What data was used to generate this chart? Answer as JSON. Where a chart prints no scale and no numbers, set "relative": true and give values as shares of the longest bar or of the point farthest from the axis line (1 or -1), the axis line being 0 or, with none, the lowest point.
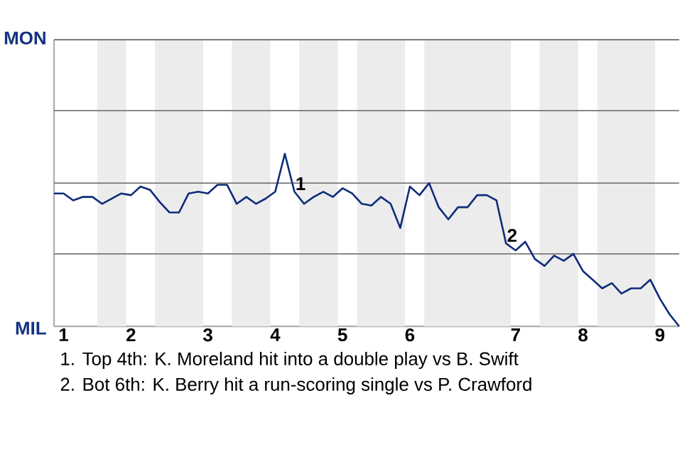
{
  "chart_data": {
    "type": "line",
    "relative": true,
    "categories": [
      null,
      "1",
      null,
      null,
      null,
      null,
      null,
      null,
      "2",
      null,
      null,
      null,
      null,
      null,
      null,
      null,
      "3",
      null,
      null,
      null,
      null,
      null,
      null,
      "4",
      null,
      null,
      null,
      null,
      null,
      null,
      "5",
      null,
      null,
      null,
      null,
      null,
      null,
      "6",
      null,
      null,
      null,
      null,
      null,
      null,
      null,
      null,
      null,
      null,
      "7",
      null,
      null,
      null,
      null,
      null,
      null,
      "8",
      null,
      null,
      null,
      null,
      null,
      null,
      null,
      "9",
      null,
      null
    ],
    "series": [
      {
        "color": "#0d2c7a",
        "values": [
          0.77,
          0.77,
          0.73,
          0.75,
          0.75,
          0.71,
          0.74,
          0.77,
          0.76,
          0.81,
          0.79,
          0.72,
          0.66,
          0.66,
          0.77,
          0.78,
          0.77,
          0.82,
          0.82,
          0.71,
          0.75,
          0.71,
          0.74,
          0.78,
          1,
          0.78,
          0.71,
          0.75,
          0.78,
          0.75,
          0.8,
          0.77,
          0.71,
          0.7,
          0.75,
          0.71,
          0.57,
          0.81,
          0.76,
          0.83,
          0.69,
          0.62,
          0.69,
          0.69,
          0.76,
          0.76,
          0.73,
          0.48,
          0.44,
          0.49,
          0.39,
          0.35,
          0.41,
          0.38,
          0.42,
          0.32,
          0.27,
          0.22,
          0.25,
          0.19,
          0.22,
          0.22,
          0.27,
          0.16,
          0.07,
          0
        ]
      }
    ],
    "ref_lines": [
      {
        "axis": "y",
        "value": 0.42,
        "color": "#787878"
      },
      {
        "axis": "y",
        "value": 0.83,
        "color": "#787878"
      },
      {
        "axis": "y",
        "value": 1.25,
        "color": "#787878"
      }
    ],
    "annotations": [
      {
        "text": "1",
        "y": 0.78
      },
      {
        "text": "2",
        "y": 0.48
      },
      "MON",
      "MIL",
      "1. Top 4th: K. Moreland hit into a double play vs B. Swift",
      "2. Bot 6th: K. Berry hit a run-scoring single vs P. Crawford"
    ]
  }
}
